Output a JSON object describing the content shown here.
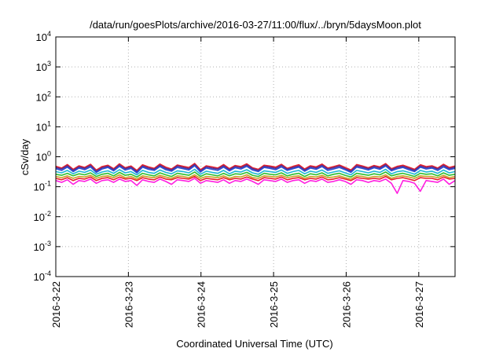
{
  "chart_data": {
    "type": "line",
    "title": "/data/run/goesPlots/archive/2016-03-27/11:00/flux/../bryn/5daysMoon.plot",
    "xlabel": "Coordinated Universal Time (UTC)",
    "ylabel": "cSv/day",
    "yscale": "log",
    "ylim": [
      0.0001,
      10000
    ],
    "xlim": [
      "2016-03-22 00:00",
      "2016-03-27 12:00"
    ],
    "grid": true,
    "legend": "none",
    "y_ticks": [
      {
        "base": "10",
        "exp": "-4",
        "value": 0.0001
      },
      {
        "base": "10",
        "exp": "-3",
        "value": 0.001
      },
      {
        "base": "10",
        "exp": "-2",
        "value": 0.01
      },
      {
        "base": "10",
        "exp": "-1",
        "value": 0.1
      },
      {
        "base": "10",
        "exp": "0",
        "value": 1
      },
      {
        "base": "10",
        "exp": "1",
        "value": 10
      },
      {
        "base": "10",
        "exp": "2",
        "value": 100
      },
      {
        "base": "10",
        "exp": "3",
        "value": 1000
      },
      {
        "base": "10",
        "exp": "4",
        "value": 10000
      }
    ],
    "x_ticks": [
      {
        "label": "2016-3-22",
        "day": 0
      },
      {
        "label": "2016-3-23",
        "day": 1
      },
      {
        "label": "2016-3-24",
        "day": 2
      },
      {
        "label": "2016-3-25",
        "day": 3
      },
      {
        "label": "2016-3-26",
        "day": 4
      },
      {
        "label": "2016-3-27",
        "day": 5
      }
    ],
    "series": [
      {
        "color": "#e8202a",
        "values": [
          0.48,
          0.42,
          0.55,
          0.38,
          0.5,
          0.44,
          0.56,
          0.36,
          0.47,
          0.52,
          0.4,
          0.58,
          0.43,
          0.49,
          0.35,
          0.54,
          0.46,
          0.41,
          0.57,
          0.45,
          0.39,
          0.53,
          0.48,
          0.44,
          0.6,
          0.37,
          0.5,
          0.46,
          0.42,
          0.55,
          0.4,
          0.51,
          0.47,
          0.58,
          0.43,
          0.38,
          0.52,
          0.49,
          0.45,
          0.56,
          0.41,
          0.48,
          0.54,
          0.39,
          0.5,
          0.46,
          0.57,
          0.42,
          0.47,
          0.53,
          0.44,
          0.36,
          0.55,
          0.49,
          0.43,
          0.51,
          0.46,
          0.59,
          0.4,
          0.48,
          0.52,
          0.45,
          0.38,
          0.54,
          0.47,
          0.5,
          0.42,
          0.56,
          0.44,
          0.49
        ]
      },
      {
        "color": "#5a2d8c",
        "values": [
          0.44,
          0.39,
          0.5,
          0.35,
          0.46,
          0.41,
          0.51,
          0.33,
          0.43,
          0.48,
          0.37,
          0.53,
          0.4,
          0.45,
          0.32,
          0.49,
          0.42,
          0.38,
          0.52,
          0.41,
          0.36,
          0.49,
          0.44,
          0.4,
          0.55,
          0.34,
          0.46,
          0.42,
          0.39,
          0.5,
          0.37,
          0.47,
          0.43,
          0.53,
          0.4,
          0.35,
          0.48,
          0.45,
          0.41,
          0.51,
          0.38,
          0.44,
          0.49,
          0.36,
          0.46,
          0.42,
          0.52,
          0.39,
          0.43,
          0.49,
          0.4,
          0.33,
          0.5,
          0.45,
          0.4,
          0.47,
          0.42,
          0.54,
          0.37,
          0.44,
          0.48,
          0.41,
          0.35,
          0.49,
          0.43,
          0.46,
          0.39,
          0.51,
          0.4,
          0.45
        ]
      },
      {
        "color": "#2a4fd6",
        "values": [
          0.4,
          0.35,
          0.45,
          0.32,
          0.42,
          0.37,
          0.46,
          0.3,
          0.39,
          0.44,
          0.34,
          0.48,
          0.36,
          0.41,
          0.29,
          0.45,
          0.38,
          0.35,
          0.47,
          0.37,
          0.33,
          0.44,
          0.4,
          0.36,
          0.5,
          0.31,
          0.42,
          0.38,
          0.35,
          0.45,
          0.34,
          0.43,
          0.39,
          0.48,
          0.36,
          0.32,
          0.44,
          0.41,
          0.37,
          0.46,
          0.35,
          0.4,
          0.45,
          0.33,
          0.42,
          0.38,
          0.47,
          0.35,
          0.39,
          0.44,
          0.37,
          0.3,
          0.45,
          0.41,
          0.36,
          0.43,
          0.38,
          0.49,
          0.34,
          0.4,
          0.44,
          0.37,
          0.32,
          0.45,
          0.39,
          0.42,
          0.35,
          0.46,
          0.37,
          0.41
        ]
      },
      {
        "color": "#1fb6d6",
        "values": [
          0.32,
          0.29,
          0.35,
          0.27,
          0.33,
          0.3,
          0.36,
          0.26,
          0.31,
          0.34,
          0.28,
          0.37,
          0.29,
          0.32,
          0.25,
          0.35,
          0.3,
          0.28,
          0.36,
          0.3,
          0.27,
          0.34,
          0.32,
          0.29,
          0.38,
          0.26,
          0.33,
          0.3,
          0.28,
          0.35,
          0.27,
          0.33,
          0.31,
          0.37,
          0.29,
          0.26,
          0.34,
          0.32,
          0.3,
          0.36,
          0.28,
          0.32,
          0.35,
          0.27,
          0.33,
          0.3,
          0.36,
          0.28,
          0.31,
          0.34,
          0.29,
          0.25,
          0.35,
          0.32,
          0.29,
          0.33,
          0.3,
          0.38,
          0.27,
          0.32,
          0.34,
          0.3,
          0.26,
          0.35,
          0.31,
          0.33,
          0.28,
          0.36,
          0.29,
          0.32
        ]
      },
      {
        "color": "#2fbf2f",
        "values": [
          0.26,
          0.24,
          0.28,
          0.23,
          0.27,
          0.25,
          0.29,
          0.22,
          0.26,
          0.28,
          0.23,
          0.3,
          0.24,
          0.26,
          0.21,
          0.28,
          0.25,
          0.23,
          0.29,
          0.25,
          0.22,
          0.28,
          0.26,
          0.24,
          0.31,
          0.22,
          0.27,
          0.25,
          0.23,
          0.28,
          0.23,
          0.27,
          0.26,
          0.3,
          0.24,
          0.22,
          0.28,
          0.26,
          0.25,
          0.29,
          0.23,
          0.26,
          0.28,
          0.22,
          0.27,
          0.25,
          0.29,
          0.23,
          0.26,
          0.28,
          0.24,
          0.21,
          0.28,
          0.26,
          0.24,
          0.27,
          0.25,
          0.31,
          0.23,
          0.26,
          0.28,
          0.25,
          0.22,
          0.28,
          0.26,
          0.27,
          0.23,
          0.29,
          0.24,
          0.26
        ]
      },
      {
        "color": "#c9a227",
        "values": [
          0.22,
          0.2,
          0.23,
          0.19,
          0.22,
          0.21,
          0.24,
          0.19,
          0.22,
          0.23,
          0.2,
          0.25,
          0.2,
          0.22,
          0.18,
          0.23,
          0.21,
          0.2,
          0.24,
          0.21,
          0.19,
          0.23,
          0.22,
          0.2,
          0.25,
          0.19,
          0.22,
          0.21,
          0.2,
          0.23,
          0.19,
          0.22,
          0.21,
          0.25,
          0.2,
          0.19,
          0.23,
          0.22,
          0.21,
          0.24,
          0.2,
          0.22,
          0.23,
          0.19,
          0.22,
          0.21,
          0.24,
          0.2,
          0.21,
          0.23,
          0.2,
          0.18,
          0.23,
          0.22,
          0.2,
          0.22,
          0.21,
          0.25,
          0.19,
          0.22,
          0.23,
          0.21,
          0.19,
          0.23,
          0.22,
          0.22,
          0.2,
          0.24,
          0.2,
          0.22
        ]
      },
      {
        "color": "#e8202a",
        "values": [
          0.19,
          0.17,
          0.2,
          0.16,
          0.19,
          0.18,
          0.21,
          0.16,
          0.19,
          0.2,
          0.17,
          0.21,
          0.18,
          0.19,
          0.16,
          0.2,
          0.18,
          0.17,
          0.21,
          0.18,
          0.17,
          0.2,
          0.19,
          0.18,
          0.22,
          0.16,
          0.19,
          0.18,
          0.17,
          0.2,
          0.17,
          0.19,
          0.18,
          0.21,
          0.18,
          0.16,
          0.2,
          0.19,
          0.18,
          0.21,
          0.17,
          0.19,
          0.2,
          0.17,
          0.19,
          0.18,
          0.21,
          0.17,
          0.18,
          0.2,
          0.18,
          0.16,
          0.2,
          0.19,
          0.18,
          0.19,
          0.18,
          0.22,
          0.17,
          0.19,
          0.2,
          0.18,
          0.16,
          0.2,
          0.19,
          0.19,
          0.17,
          0.21,
          0.18,
          0.19
        ]
      },
      {
        "color": "#ff1fe0",
        "values": [
          0.16,
          0.14,
          0.17,
          0.12,
          0.16,
          0.15,
          0.18,
          0.13,
          0.16,
          0.17,
          0.14,
          0.18,
          0.15,
          0.16,
          0.11,
          0.17,
          0.15,
          0.14,
          0.18,
          0.15,
          0.12,
          0.17,
          0.16,
          0.15,
          0.19,
          0.13,
          0.16,
          0.15,
          0.14,
          0.17,
          0.13,
          0.16,
          0.15,
          0.18,
          0.15,
          0.12,
          0.17,
          0.16,
          0.15,
          0.18,
          0.14,
          0.16,
          0.17,
          0.13,
          0.16,
          0.15,
          0.18,
          0.14,
          0.15,
          0.17,
          0.15,
          0.12,
          0.17,
          0.16,
          0.14,
          0.16,
          0.15,
          0.18,
          0.13,
          0.06,
          0.16,
          0.15,
          0.13,
          0.07,
          0.16,
          0.15,
          0.14,
          0.18,
          0.12,
          0.16
        ]
      }
    ]
  }
}
